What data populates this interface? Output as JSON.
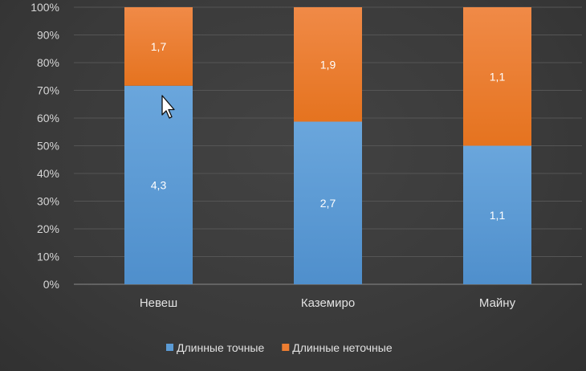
{
  "chart_data": {
    "type": "bar",
    "stacked": true,
    "percent_stacked": true,
    "categories": [
      "Невеш",
      "Каземиро",
      "Майну"
    ],
    "series": [
      {
        "name": "Длинные точные",
        "values": [
          4.3,
          2.7,
          1.1
        ],
        "labels": [
          "4,3",
          "2,7",
          "1,1"
        ],
        "color": "#5b9bd5"
      },
      {
        "name": "Длинные неточные",
        "values": [
          1.7,
          1.9,
          1.1
        ],
        "labels": [
          "1,7",
          "1,9",
          "1,1"
        ],
        "color": "#ed7d31"
      }
    ],
    "y_ticks": [
      "0%",
      "10%",
      "20%",
      "30%",
      "40%",
      "50%",
      "60%",
      "70%",
      "80%",
      "90%",
      "100%"
    ],
    "ylim": [
      0,
      100
    ],
    "grid": true,
    "legend_position": "bottom"
  }
}
